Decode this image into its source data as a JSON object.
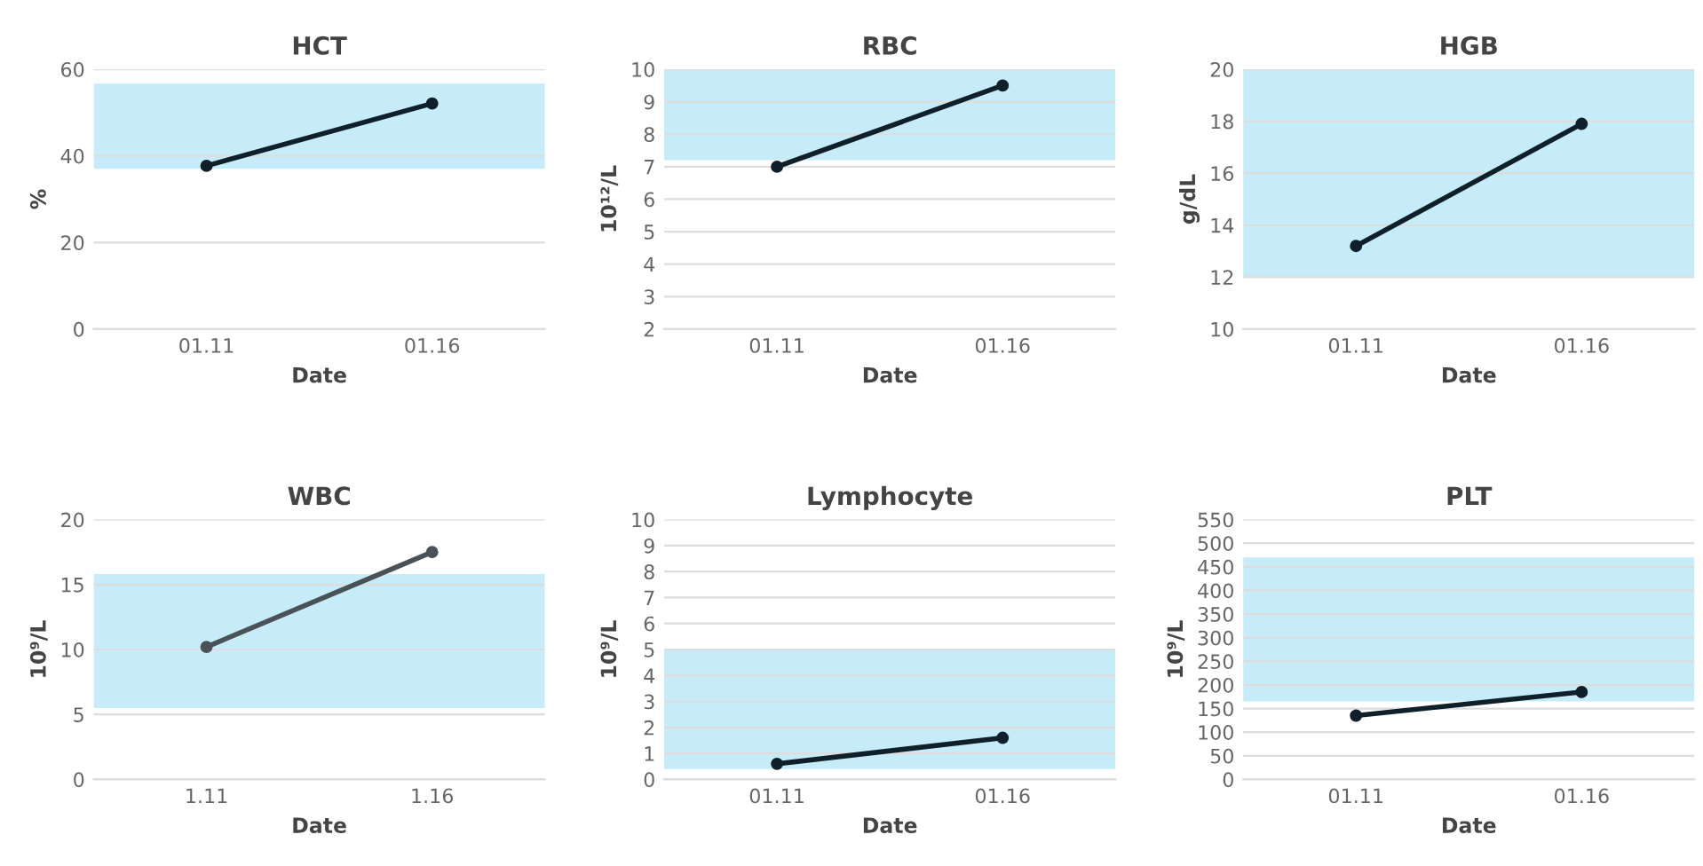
{
  "chart_data": [
    {
      "type": "line",
      "title": "HCT",
      "xlabel": "Date",
      "ylabel": "%",
      "categories": [
        "01.11",
        "01.16"
      ],
      "series": [
        {
          "color": "#10202a",
          "values": [
            37.7,
            52.1
          ]
        }
      ],
      "ylim": [
        0,
        60
      ],
      "yticks": [
        0,
        20,
        40,
        60
      ],
      "bands": [
        {
          "axis": "y",
          "from": 37,
          "to": 56.7,
          "color": "#c5ecf8"
        }
      ],
      "grid": "y",
      "marker": "circle",
      "legend": false
    },
    {
      "type": "line",
      "title": "RBC",
      "xlabel": "Date",
      "ylabel": "10¹²/L",
      "categories": [
        "01.11",
        "01.16"
      ],
      "series": [
        {
          "color": "#10202a",
          "values": [
            7.0,
            9.5
          ]
        }
      ],
      "ylim": [
        2,
        10
      ],
      "yticks": [
        2,
        3,
        4,
        5,
        6,
        7,
        8,
        9,
        10
      ],
      "bands": [
        {
          "axis": "y",
          "from": 7.2,
          "to": 10,
          "color": "#c5ecf8"
        }
      ],
      "grid": "y",
      "marker": "circle",
      "legend": false
    },
    {
      "type": "line",
      "title": "HGB",
      "xlabel": "Date",
      "ylabel": "g/dL",
      "categories": [
        "01.11",
        "01.16"
      ],
      "series": [
        {
          "color": "#10202a",
          "values": [
            13.2,
            17.9
          ]
        }
      ],
      "ylim": [
        10,
        20
      ],
      "yticks": [
        10,
        12,
        14,
        16,
        18,
        20
      ],
      "bands": [
        {
          "axis": "y",
          "from": 12,
          "to": 20,
          "color": "#c5ecf8"
        }
      ],
      "grid": "y",
      "marker": "circle",
      "legend": false
    },
    {
      "type": "line",
      "title": "WBC",
      "xlabel": "Date",
      "ylabel": "10⁹/L",
      "categories": [
        "1.11",
        "1.16"
      ],
      "series": [
        {
          "color": "#4a5258",
          "values": [
            10.2,
            17.5
          ]
        }
      ],
      "ylim": [
        0,
        20
      ],
      "yticks": [
        0,
        5,
        10,
        15,
        20
      ],
      "bands": [
        {
          "axis": "y",
          "from": 5.5,
          "to": 15.8,
          "color": "#c5ecf8"
        }
      ],
      "grid": "y",
      "marker": "circle",
      "legend": false
    },
    {
      "type": "line",
      "title": "Lymphocyte",
      "xlabel": "Date",
      "ylabel": "10⁹/L",
      "categories": [
        "01.11",
        "01.16"
      ],
      "series": [
        {
          "color": "#10202a",
          "values": [
            0.6,
            1.6
          ]
        }
      ],
      "ylim": [
        0,
        10
      ],
      "yticks": [
        0,
        1,
        2,
        3,
        4,
        5,
        6,
        7,
        8,
        9,
        10
      ],
      "bands": [
        {
          "axis": "y",
          "from": 0.4,
          "to": 5,
          "color": "#c5ecf8"
        }
      ],
      "grid": "y",
      "marker": "circle",
      "legend": false
    },
    {
      "type": "line",
      "title": "PLT",
      "xlabel": "Date",
      "ylabel": "10⁹/L",
      "categories": [
        "01.11",
        "01.16"
      ],
      "series": [
        {
          "color": "#10202a",
          "values": [
            135,
            185
          ]
        }
      ],
      "ylim": [
        0,
        550
      ],
      "yticks": [
        0,
        50,
        100,
        150,
        200,
        250,
        300,
        350,
        400,
        450,
        500,
        550
      ],
      "bands": [
        {
          "axis": "y",
          "from": 165,
          "to": 470,
          "color": "#c5ecf8"
        }
      ],
      "grid": "y",
      "marker": "circle",
      "legend": false
    }
  ]
}
